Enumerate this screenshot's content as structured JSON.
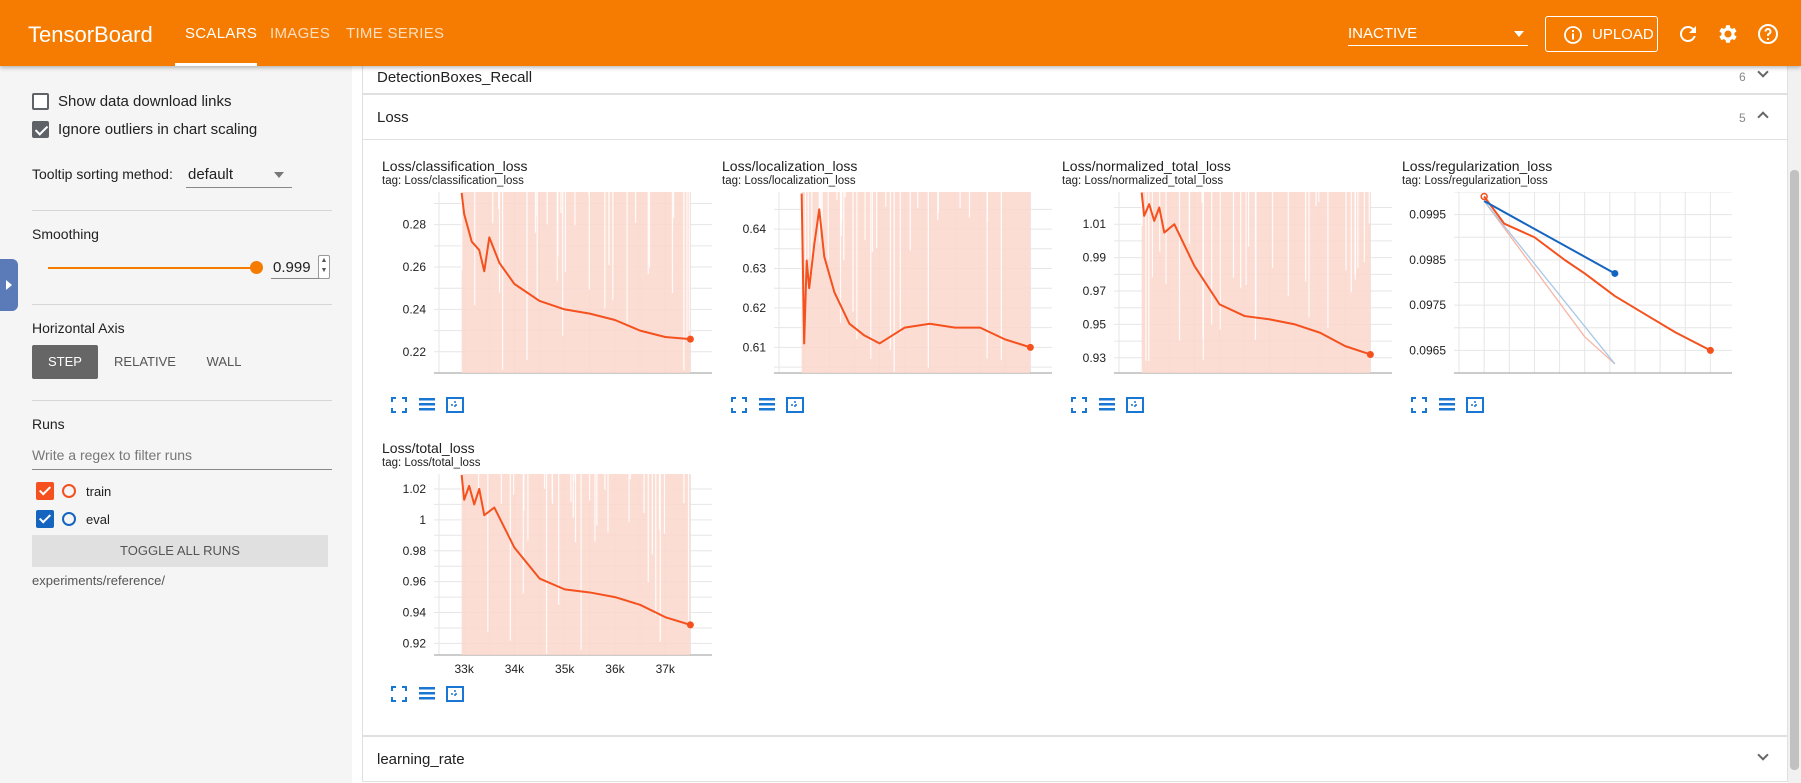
{
  "header": {
    "app_title": "TensorBoard",
    "tabs": [
      {
        "label": "SCALARS",
        "active": true
      },
      {
        "label": "IMAGES",
        "active": false
      },
      {
        "label": "TIME SERIES",
        "active": false
      }
    ],
    "run_status_select": "INACTIVE",
    "upload_label": "UPLOAD",
    "icons": [
      "info-icon",
      "refresh-icon",
      "settings-icon",
      "help-icon"
    ],
    "accent_color": "#f57c00"
  },
  "sidebar": {
    "show_download_links": {
      "label": "Show data download links",
      "checked": false
    },
    "ignore_outliers": {
      "label": "Ignore outliers in chart scaling",
      "checked": true
    },
    "tooltip_sorting": {
      "label": "Tooltip sorting method:",
      "value": "default"
    },
    "smoothing": {
      "label": "Smoothing",
      "value": "0.999",
      "fraction": 0.999
    },
    "horizontal_axis": {
      "label": "Horizontal Axis",
      "options": [
        "STEP",
        "RELATIVE",
        "WALL"
      ],
      "selected": "STEP"
    },
    "runs": {
      "label": "Runs",
      "filter_placeholder": "Write a regex to filter runs",
      "items": [
        {
          "name": "train",
          "checked": true,
          "color": "#f4511e"
        },
        {
          "name": "eval",
          "checked": true,
          "color": "#1565c0"
        }
      ],
      "toggle_all_label": "TOGGLE ALL RUNS",
      "logdir": "experiments/reference/"
    }
  },
  "main": {
    "panes": [
      {
        "name": "DetectionBoxes_Recall",
        "count": "6",
        "expanded": false
      },
      {
        "name": "Loss",
        "count": "5",
        "expanded": true
      },
      {
        "name": "learning_rate",
        "count": "",
        "expanded": false
      }
    ]
  },
  "chart_data": [
    {
      "type": "line",
      "title": "Loss/classification_loss",
      "subtitle": "tag: Loss/classification_loss",
      "x": [
        32950,
        33000,
        33150,
        33300,
        33400,
        33500,
        33700,
        34000,
        34500,
        35000,
        35500,
        36000,
        36500,
        37000,
        37500
      ],
      "yticks": [
        0.22,
        0.24,
        0.26,
        0.28
      ],
      "ylim": [
        0.21,
        0.2954
      ],
      "xlim": [
        32400,
        37950
      ],
      "series": [
        {
          "name": "train",
          "values": [
            0.295,
            0.285,
            0.272,
            0.268,
            0.258,
            0.274,
            0.262,
            0.252,
            0.244,
            0.24,
            0.238,
            0.235,
            0.23,
            0.227,
            0.226
          ]
        }
      ]
    },
    {
      "type": "line",
      "title": "Loss/localization_loss",
      "subtitle": "tag: Loss/localization_loss",
      "x": [
        32950,
        33000,
        33050,
        33100,
        33200,
        33300,
        33400,
        33600,
        33900,
        34200,
        34500,
        35000,
        35500,
        36000,
        36500,
        37000,
        37500
      ],
      "yticks": [
        0.61,
        0.62,
        0.63,
        0.64
      ],
      "ylim": [
        0.6035,
        0.6494
      ],
      "xlim": [
        32400,
        37950
      ],
      "series": [
        {
          "name": "train",
          "values": [
            0.649,
            0.611,
            0.632,
            0.625,
            0.636,
            0.645,
            0.633,
            0.624,
            0.616,
            0.613,
            0.611,
            0.615,
            0.616,
            0.615,
            0.615,
            0.612,
            0.61
          ]
        }
      ]
    },
    {
      "type": "line",
      "title": "Loss/normalized_total_loss",
      "subtitle": "tag: Loss/normalized_total_loss",
      "x": [
        32950,
        33000,
        33100,
        33200,
        33300,
        33400,
        33600,
        34000,
        34500,
        35000,
        35500,
        36000,
        36500,
        37000,
        37500
      ],
      "yticks": [
        0.93,
        0.95,
        0.97,
        0.99,
        1.01
      ],
      "ylim": [
        0.9209,
        1.0293
      ],
      "xlim": [
        32400,
        37950
      ],
      "series": [
        {
          "name": "train",
          "values": [
            1.029,
            1.015,
            1.022,
            1.012,
            1.02,
            1.005,
            1.01,
            0.985,
            0.962,
            0.955,
            0.953,
            0.95,
            0.945,
            0.937,
            0.932
          ]
        }
      ]
    },
    {
      "type": "line",
      "title": "Loss/regularization_loss",
      "subtitle": "tag: Loss/regularization_loss",
      "x": [
        33000,
        33400,
        34000,
        34600,
        35000,
        35600,
        36200,
        36800,
        37500
      ],
      "yticks": [
        0.0965,
        0.0975,
        0.0985,
        0.0995
      ],
      "ylim": [
        0.096,
        0.1
      ],
      "xlim": [
        32400,
        37950
      ],
      "series": [
        {
          "name": "train",
          "values": [
            0.0999,
            0.0993,
            0.099,
            0.0985,
            0.0982,
            0.0977,
            0.0973,
            0.0969,
            0.0965
          ]
        },
        {
          "name": "eval",
          "x": [
            33000,
            35600
          ],
          "values": [
            0.0998,
            0.0982
          ]
        }
      ]
    },
    {
      "type": "line",
      "title": "Loss/total_loss",
      "subtitle": "tag: Loss/total_loss",
      "x": [
        32950,
        33000,
        33100,
        33200,
        33300,
        33400,
        33600,
        34000,
        34500,
        35000,
        35500,
        36000,
        36500,
        37000,
        37500
      ],
      "yticks": [
        0.92,
        0.94,
        0.96,
        0.98,
        1,
        1.02
      ],
      "xticks": [
        "33k",
        "34k",
        "35k",
        "36k",
        "37k"
      ],
      "ylim": [
        0.9125,
        1.0297
      ],
      "xlim": [
        32400,
        37950
      ],
      "series": [
        {
          "name": "train",
          "values": [
            1.029,
            1.013,
            1.022,
            1.01,
            1.02,
            1.003,
            1.008,
            0.982,
            0.962,
            0.955,
            0.953,
            0.95,
            0.945,
            0.937,
            0.932
          ]
        }
      ]
    }
  ]
}
